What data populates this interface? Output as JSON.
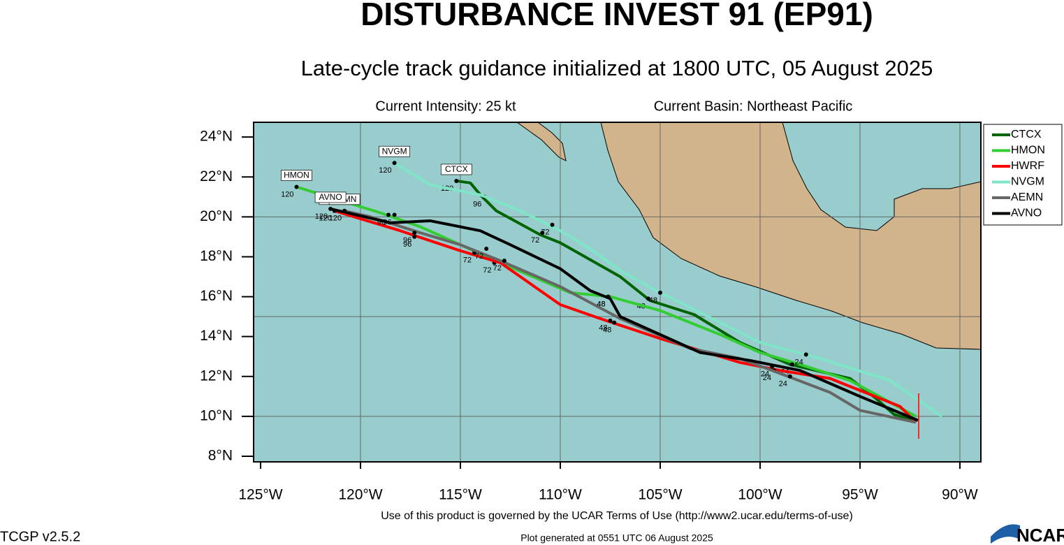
{
  "header": {
    "title": "DISTURBANCE INVEST 91 (EP91)",
    "subtitle": "Late-cycle track guidance initialized at 1800 UTC, 05 August 2025",
    "intensity": "Current Intensity: 25 kt",
    "basin": "Current Basin: Northeast Pacific"
  },
  "map": {
    "xlim": [
      -125.35,
      -88.95
    ],
    "ylim": [
      7.72,
      24.74
    ],
    "xticks": [
      {
        "value": -125,
        "label": "125°W"
      },
      {
        "value": -120,
        "label": "120°W"
      },
      {
        "value": -115,
        "label": "115°W"
      },
      {
        "value": -110,
        "label": "110°W"
      },
      {
        "value": -105,
        "label": "105°W"
      },
      {
        "value": -100,
        "label": "100°W"
      },
      {
        "value": -95,
        "label": "95°W"
      },
      {
        "value": -90,
        "label": "90°W"
      }
    ],
    "yticks": [
      {
        "value": 8,
        "label": "8°N"
      },
      {
        "value": 10,
        "label": "10°N"
      },
      {
        "value": 12,
        "label": "12°N"
      },
      {
        "value": 14,
        "label": "14°N"
      },
      {
        "value": 16,
        "label": "16°N"
      },
      {
        "value": 18,
        "label": "18°N"
      },
      {
        "value": 20,
        "label": "20°N"
      },
      {
        "value": 22,
        "label": "22°N"
      },
      {
        "value": 24,
        "label": "24°N"
      }
    ],
    "grid_lon": [
      -120,
      -115,
      -110,
      -105,
      -100,
      -95,
      -90
    ],
    "grid_lat": [
      10,
      15,
      20
    ],
    "series": [
      {
        "name": "CTCX",
        "color": "#006400",
        "lon": [
          -92.3,
          -93.3,
          -94.2,
          -95.5,
          -98.5,
          -101,
          -103.3,
          -105.5,
          -107,
          -110,
          -111,
          -113.2,
          -114,
          -114.5,
          -115.2
        ],
        "lat": [
          9.8,
          10.1,
          10.9,
          11.9,
          12.6,
          13.7,
          15.1,
          15.8,
          17,
          18.7,
          19.1,
          20.3,
          21.1,
          21.7,
          21.8
        ],
        "hour_labels": [
          {
            "label": "48",
            "lon": -105.6,
            "lat": 15.9
          },
          {
            "label": "72",
            "lon": -110.9,
            "lat": 19.2
          },
          {
            "label": "96",
            "lon": -113.8,
            "lat": 21
          },
          {
            "label": "120",
            "lon": -115.2,
            "lat": 21.8
          }
        ]
      },
      {
        "name": "HMON",
        "color": "#33cc33",
        "lon": [
          -92.2,
          -95.5,
          -98,
          -100,
          -102,
          -105,
          -107.5,
          -109.5,
          -113,
          -115,
          -117,
          -119,
          -123.2
        ],
        "lat": [
          10,
          11.8,
          12.6,
          13.2,
          14.1,
          15.3,
          16,
          16.2,
          17.7,
          18.6,
          19.5,
          20.2,
          21.5
        ],
        "hour_labels": [
          {
            "label": "24",
            "lon": -98.4,
            "lat": 12.6
          },
          {
            "label": "48",
            "lon": -107.6,
            "lat": 16
          },
          {
            "label": "72",
            "lon": -113.3,
            "lat": 17.7
          },
          {
            "label": "96",
            "lon": -118.3,
            "lat": 20.1
          },
          {
            "label": "120",
            "lon": -123.2,
            "lat": 21.5
          }
        ]
      },
      {
        "name": "HWRF",
        "color": "#ff0000",
        "lon": [
          -92.2,
          -93,
          -95,
          -96.5,
          -99,
          -101,
          -105,
          -108,
          -110,
          -113,
          -115,
          -118,
          -121.3
        ],
        "lat": [
          9.7,
          10.5,
          11.3,
          11.9,
          12.3,
          12.7,
          13.9,
          14.9,
          15.6,
          17.7,
          18.3,
          19.3,
          20.3
        ],
        "hour_labels": [
          {
            "label": "24",
            "lon": -99.3,
            "lat": 12.3
          },
          {
            "label": "48",
            "lon": -107.5,
            "lat": 14.8
          },
          {
            "label": "72",
            "lon": -114.3,
            "lat": 18.2
          },
          {
            "label": "96",
            "lon": -117.3,
            "lat": 19
          },
          {
            "label": "120",
            "lon": -121.3,
            "lat": 20.3
          }
        ]
      },
      {
        "name": "NVGM",
        "color": "#7fe5c8",
        "lon": [
          -90.9,
          -93.5,
          -97,
          -100,
          -103,
          -105,
          -107,
          -108.5,
          -110,
          -112,
          -114,
          -116.5,
          -118.3
        ],
        "lat": [
          10,
          11.8,
          12.9,
          13.7,
          15.2,
          16.2,
          17.3,
          18.4,
          19.3,
          20.3,
          21.1,
          21.6,
          22.7
        ],
        "hour_labels": [
          {
            "label": "24",
            "lon": -97.7,
            "lat": 13.1
          },
          {
            "label": "48",
            "lon": -105,
            "lat": 16.2
          },
          {
            "label": "72",
            "lon": -110.4,
            "lat": 19.6
          },
          {
            "label": "120",
            "lon": -118.3,
            "lat": 22.7
          }
        ]
      },
      {
        "name": "AEMN",
        "color": "#666666",
        "lon": [
          -92.2,
          -95,
          -96.5,
          -98.6,
          -101,
          -103.5,
          -107,
          -110,
          -113,
          -115,
          -117,
          -119.5,
          -120.8
        ],
        "lat": [
          9.7,
          10.3,
          11.2,
          12,
          12.9,
          13.4,
          14.9,
          16.5,
          17.8,
          18.6,
          19.2,
          20,
          20.3
        ],
        "hour_labels": [
          {
            "label": "24",
            "lon": -98.5,
            "lat": 12
          },
          {
            "label": "48",
            "lon": -107.3,
            "lat": 14.7
          },
          {
            "label": "72",
            "lon": -112.8,
            "lat": 17.8
          },
          {
            "label": "96",
            "lon": -117.3,
            "lat": 19.2
          },
          {
            "label": "120",
            "lon": -120.8,
            "lat": 20.3
          }
        ]
      },
      {
        "name": "AVNO",
        "color": "#000000",
        "lon": [
          -92.1,
          -95,
          -98,
          -100.5,
          -103,
          -105,
          -107,
          -107.5,
          -108.5,
          -110,
          -112.5,
          -114,
          -116.5,
          -118.5,
          -121.5
        ],
        "lat": [
          9.8,
          11,
          12.3,
          12.8,
          13.2,
          14.1,
          15,
          15.9,
          16.3,
          17.4,
          18.6,
          19.3,
          19.8,
          19.7,
          20.4
        ],
        "hour_labels": [
          {
            "label": "24",
            "lon": -99.4,
            "lat": 12.5
          },
          {
            "label": "48",
            "lon": -107.6,
            "lat": 16
          },
          {
            "label": "72",
            "lon": -113.7,
            "lat": 18.4
          },
          {
            "label": "96",
            "lon": -118.6,
            "lat": 20.1
          },
          {
            "label": "120",
            "lon": -121.5,
            "lat": 20.4
          }
        ]
      }
    ]
  },
  "footer": {
    "terms": "Use of this product is governed by the UCAR Terms of Use (http://www2.ucar.edu/terms-of-use)",
    "version": "TCGP v2.5.2",
    "generated": "Plot generated at 0551 UTC   06 August 2025",
    "logo": "NCAR"
  }
}
